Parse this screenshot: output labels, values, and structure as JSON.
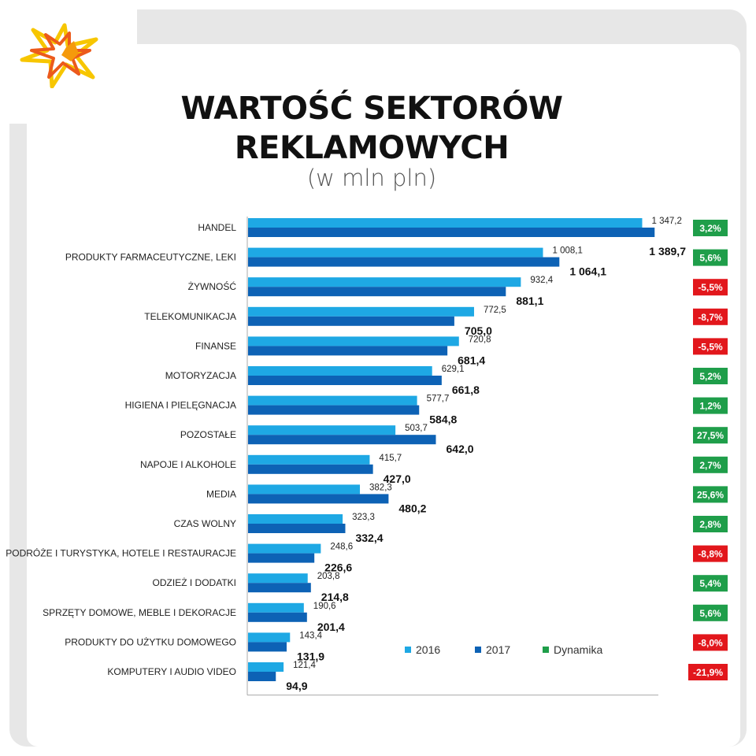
{
  "title_line1": "WARTOŚĆ SEKTORÓW",
  "title_line2": "REKLAMOWYCH",
  "subtitle": "(w mln pln)",
  "colors": {
    "s2016": "#1ea8e4",
    "s2017": "#0d62b5",
    "positive": "#1f9e4a",
    "negative": "#e2171c"
  },
  "chart_data": {
    "type": "bar",
    "orientation": "horizontal",
    "categories": [
      "HANDEL",
      "PRODUKTY FARMACEUTYCZNE, LEKI",
      "ŻYWNOŚĆ",
      "TELEKOMUNIKACJA",
      "FINANSE",
      "MOTORYZACJA",
      "HIGIENA I PIELĘGNACJA",
      "POZOSTAŁE",
      "NAPOJE I ALKOHOLE",
      "MEDIA",
      "CZAS WOLNY",
      "PODRÓŻE I TURYSTYKA, HOTELE I RESTAURACJE",
      "ODZIEŻ I DODATKI",
      "SPRZĘTY DOMOWE, MEBLE I DEKORACJE",
      "PRODUKTY DO UŻYTKU DOMOWEGO",
      "KOMPUTERY I AUDIO VIDEO"
    ],
    "series": [
      {
        "name": "2016",
        "values": [
          1347.2,
          1008.1,
          932.4,
          772.5,
          720.8,
          629.1,
          577.7,
          503.7,
          415.7,
          382.3,
          323.3,
          248.6,
          203.8,
          190.6,
          143.4,
          121.4
        ],
        "labels": [
          "1 347,2",
          "1 008,1",
          "932,4",
          "772,5",
          "720,8",
          "629,1",
          "577,7",
          "503,7",
          "415,7",
          "382,3",
          "323,3",
          "248,6",
          "203,8",
          "190,6",
          "143,4",
          "121,4"
        ]
      },
      {
        "name": "2017",
        "values": [
          1389.7,
          1064.1,
          881.1,
          705.0,
          681.4,
          661.8,
          584.8,
          642.0,
          427.0,
          480.2,
          332.4,
          226.6,
          214.8,
          201.4,
          131.9,
          94.9
        ],
        "labels": [
          "1 389,7",
          "1 064,1",
          "881,1",
          "705,0",
          "681,4",
          "661,8",
          "584,8",
          "642,0",
          "427,0",
          "480,2",
          "332,4",
          "226,6",
          "214,8",
          "201,4",
          "131,9",
          "94,9"
        ]
      }
    ],
    "dynamika": {
      "name": "Dynamika",
      "values": [
        3.2,
        5.6,
        -5.5,
        -8.7,
        -5.5,
        5.2,
        1.2,
        27.5,
        2.7,
        25.6,
        2.8,
        -8.8,
        5.4,
        5.6,
        -8.0,
        -21.9
      ],
      "labels": [
        "3,2%",
        "5,6%",
        "-5,5%",
        "-8,7%",
        "-5,5%",
        "5,2%",
        "1,2%",
        "27,5%",
        "2,7%",
        "25,6%",
        "2,8%",
        "-8,8%",
        "5,4%",
        "5,6%",
        "-8,0%",
        "-21,9%"
      ]
    },
    "xlim": [
      0,
      1400
    ],
    "legend": [
      "2016",
      "2017",
      "Dynamika"
    ],
    "legend_position": "bottom-right inside plot",
    "grid": false
  }
}
